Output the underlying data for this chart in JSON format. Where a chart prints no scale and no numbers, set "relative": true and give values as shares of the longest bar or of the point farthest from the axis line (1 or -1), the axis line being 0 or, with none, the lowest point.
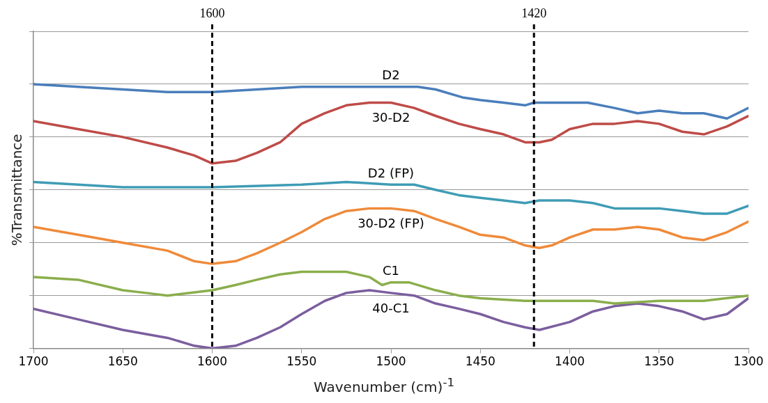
{
  "chart_data": {
    "type": "line",
    "relative": true,
    "xlabel": "Wavenumber (cm)$^{-1}$",
    "ylabel": "%Transmittance",
    "xlim": [
      1700,
      1300
    ],
    "xticks": [
      1700,
      1650,
      1600,
      1550,
      1500,
      1450,
      1400,
      1350,
      1300
    ],
    "grid": "y",
    "legend": false,
    "marker": "none",
    "line_style": "solid",
    "ref_lines": [
      {
        "axis": "x",
        "value": 1600,
        "label": "1600",
        "color": "#000000",
        "line_style": "dashed"
      },
      {
        "axis": "x",
        "value": 1420,
        "label": "1420",
        "color": "#000000",
        "line_style": "dashed"
      }
    ],
    "series": [
      {
        "name": "D2",
        "color": "#4a7ebb",
        "x": [
          1700,
          1650,
          1625,
          1600,
          1575,
          1550,
          1525,
          1500,
          1485,
          1475,
          1460,
          1450,
          1437,
          1425,
          1420,
          1410,
          1390,
          1375,
          1362,
          1350,
          1337,
          1325,
          1312,
          1300
        ],
        "values": [
          1.0,
          0.98,
          0.97,
          0.97,
          0.98,
          0.99,
          0.99,
          0.99,
          0.99,
          0.98,
          0.95,
          0.94,
          0.93,
          0.92,
          0.93,
          0.93,
          0.93,
          0.91,
          0.89,
          0.9,
          0.89,
          0.89,
          0.87,
          0.91
        ]
      },
      {
        "name": "30-D2",
        "color": "#be4b48",
        "x": [
          1700,
          1675,
          1650,
          1625,
          1610,
          1600,
          1587,
          1575,
          1562,
          1550,
          1537,
          1525,
          1512,
          1500,
          1487,
          1475,
          1462,
          1450,
          1437,
          1425,
          1417,
          1410,
          1400,
          1387,
          1375,
          1362,
          1350,
          1337,
          1325,
          1312,
          1300
        ],
        "values": [
          0.86,
          0.83,
          0.8,
          0.76,
          0.73,
          0.7,
          0.71,
          0.74,
          0.78,
          0.85,
          0.89,
          0.92,
          0.93,
          0.93,
          0.91,
          0.88,
          0.85,
          0.83,
          0.81,
          0.78,
          0.78,
          0.79,
          0.83,
          0.85,
          0.85,
          0.86,
          0.85,
          0.82,
          0.81,
          0.84,
          0.88
        ]
      },
      {
        "name": "D2 (FP)",
        "color": "#3f9cb5",
        "x": [
          1700,
          1650,
          1625,
          1600,
          1550,
          1525,
          1500,
          1487,
          1475,
          1462,
          1450,
          1437,
          1425,
          1417,
          1400,
          1387,
          1375,
          1362,
          1350,
          1337,
          1325,
          1312,
          1300
        ],
        "values": [
          0.63,
          0.61,
          0.61,
          0.61,
          0.62,
          0.63,
          0.62,
          0.62,
          0.6,
          0.58,
          0.57,
          0.56,
          0.55,
          0.56,
          0.56,
          0.55,
          0.53,
          0.53,
          0.53,
          0.52,
          0.51,
          0.51,
          0.54
        ]
      },
      {
        "name": "30-D2 (FP)",
        "color": "#ef8a3a",
        "x": [
          1700,
          1675,
          1650,
          1625,
          1610,
          1600,
          1587,
          1575,
          1562,
          1550,
          1537,
          1525,
          1512,
          1500,
          1487,
          1475,
          1462,
          1450,
          1437,
          1425,
          1417,
          1410,
          1400,
          1387,
          1375,
          1362,
          1350,
          1337,
          1325,
          1312,
          1300
        ],
        "values": [
          0.46,
          0.43,
          0.4,
          0.37,
          0.33,
          0.32,
          0.33,
          0.36,
          0.4,
          0.44,
          0.49,
          0.52,
          0.53,
          0.53,
          0.52,
          0.49,
          0.46,
          0.43,
          0.42,
          0.39,
          0.38,
          0.39,
          0.42,
          0.45,
          0.45,
          0.46,
          0.45,
          0.42,
          0.41,
          0.44,
          0.48
        ]
      },
      {
        "name": "C1",
        "color": "#8aae4c",
        "x": [
          1700,
          1675,
          1650,
          1637,
          1625,
          1600,
          1587,
          1575,
          1562,
          1550,
          1537,
          1525,
          1512,
          1505,
          1500,
          1490,
          1475,
          1462,
          1450,
          1425,
          1400,
          1387,
          1375,
          1350,
          1325,
          1300
        ],
        "values": [
          0.27,
          0.26,
          0.22,
          0.21,
          0.2,
          0.22,
          0.24,
          0.26,
          0.28,
          0.29,
          0.29,
          0.29,
          0.27,
          0.24,
          0.25,
          0.25,
          0.22,
          0.2,
          0.19,
          0.18,
          0.18,
          0.18,
          0.17,
          0.18,
          0.18,
          0.2
        ]
      },
      {
        "name": "40-C1",
        "color": "#7b5e9e",
        "x": [
          1700,
          1675,
          1650,
          1625,
          1610,
          1600,
          1587,
          1575,
          1562,
          1550,
          1537,
          1525,
          1512,
          1500,
          1487,
          1475,
          1462,
          1450,
          1437,
          1425,
          1417,
          1400,
          1387,
          1375,
          1362,
          1350,
          1337,
          1325,
          1312,
          1300
        ],
        "values": [
          0.15,
          0.11,
          0.07,
          0.04,
          0.01,
          0.0,
          0.01,
          0.04,
          0.08,
          0.13,
          0.18,
          0.21,
          0.22,
          0.21,
          0.2,
          0.17,
          0.15,
          0.13,
          0.1,
          0.08,
          0.07,
          0.1,
          0.14,
          0.16,
          0.17,
          0.16,
          0.14,
          0.11,
          0.13,
          0.19
        ]
      }
    ]
  }
}
